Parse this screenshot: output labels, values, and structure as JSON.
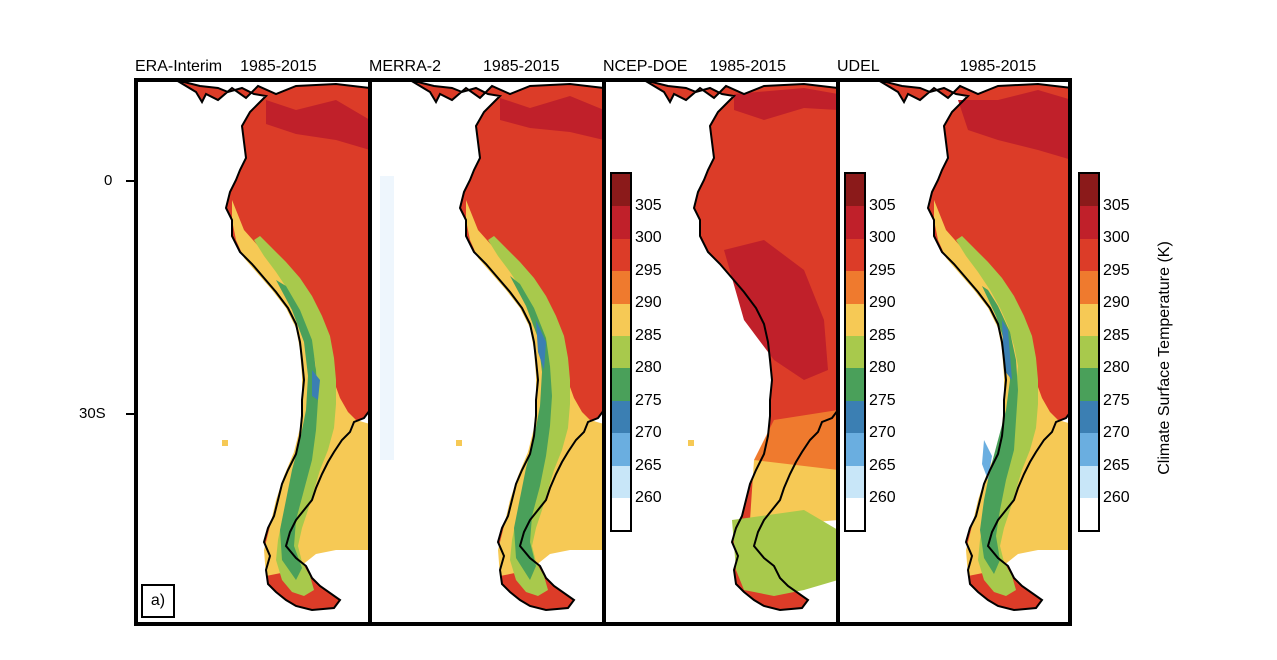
{
  "panels": [
    {
      "name": "ERA-Interim",
      "period": "1985-2015"
    },
    {
      "name": "MERRA-2",
      "period": "1985-2015"
    },
    {
      "name": "NCEP-DOE",
      "period": "1985-2015"
    },
    {
      "name": "UDEL",
      "period": "1985-2015"
    }
  ],
  "y_axis_labels": {
    "equator": "0",
    "south30": "30S"
  },
  "panel_label": "a)",
  "colorbar": {
    "title": "Climate Surface Temperature (K)",
    "ticks": [
      "305",
      "300",
      "295",
      "290",
      "285",
      "280",
      "275",
      "270",
      "265",
      "260"
    ],
    "colors": [
      "#8b1a1a",
      "#c0202a",
      "#dc3c28",
      "#ef7a2e",
      "#f6c955",
      "#a8c94c",
      "#4aa05a",
      "#3b7fb3",
      "#6aaee0",
      "#c8e6f8",
      "#ffffff"
    ]
  },
  "field_colors": {
    "hot": "#dc3c28",
    "very_hot": "#c0202a",
    "warm": "#ef7a2e",
    "mild": "#f6c955",
    "cool": "#a8c94c",
    "cold": "#4aa05a",
    "very_cold": "#3b7fb3",
    "land_outline": "#000000"
  }
}
